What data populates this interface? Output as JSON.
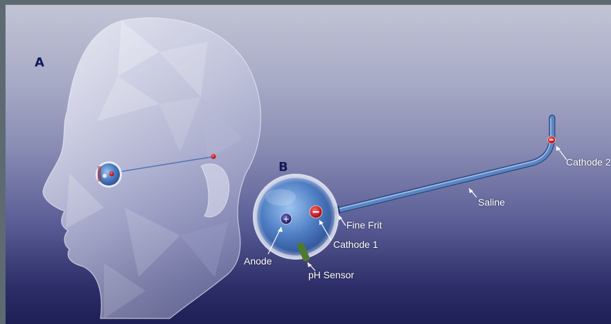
{
  "panels": {
    "a": "A",
    "b": "B"
  },
  "labels": {
    "anode": "Anode",
    "cathode1": "Cathode 1",
    "cathode2": "Cathode 2",
    "fine_frit": "Fine Frit",
    "saline": "Saline",
    "ph_sensor": "pH Sensor"
  },
  "colors": {
    "cathode": "#c8141c",
    "anode": "#2a2a72",
    "tube": "#5a86c4",
    "ph_sensor": "#4e7a2e",
    "panel_label": "#121a55"
  }
}
